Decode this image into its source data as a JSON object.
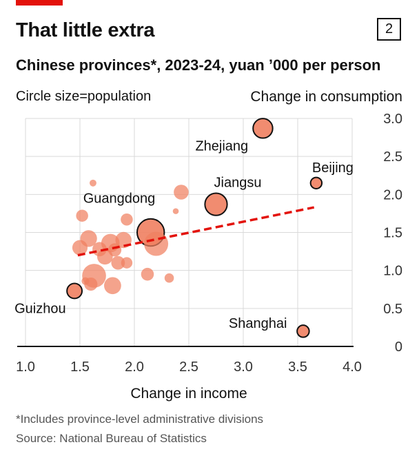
{
  "header": {
    "title": "That little extra",
    "chart_number": "2",
    "subtitle": "Chinese provinces*, 2023-24, yuan ’000 per person",
    "size_note": "Circle size=population",
    "footnote": "*Includes province-level administrative divisions",
    "source": "Source: National Bureau of Statistics"
  },
  "colors": {
    "brand_red": "#e3120b",
    "bubble_fill": "#f08060",
    "trend_line": "#e3120b",
    "grid": "#d9d9d9"
  },
  "chart_data": {
    "type": "scatter",
    "title": "That little extra",
    "xlabel": "Change in income",
    "ylabel": "Change in consumption",
    "xlim": [
      1.0,
      4.0
    ],
    "ylim": [
      0,
      3.0
    ],
    "x_ticks": [
      "1.0",
      "1.5",
      "2.0",
      "2.5",
      "3.0",
      "3.5",
      "4.0"
    ],
    "x_tick_values": [
      1.0,
      1.5,
      2.0,
      2.5,
      3.0,
      3.5,
      4.0
    ],
    "y_ticks": [
      "0",
      "0.5",
      "1.0",
      "1.5",
      "2.0",
      "2.5",
      "3.0"
    ],
    "y_tick_values": [
      0,
      0.5,
      1.0,
      1.5,
      2.0,
      2.5,
      3.0
    ],
    "grid": true,
    "trend_line": {
      "x": [
        1.48,
        3.65
      ],
      "y": [
        1.2,
        1.83
      ]
    },
    "points": [
      {
        "name": "Zhejiang",
        "x": 3.18,
        "y": 2.87,
        "pop": 66,
        "labeled": true,
        "outlined": true
      },
      {
        "name": "Beijing",
        "x": 3.67,
        "y": 2.15,
        "pop": 22,
        "labeled": true,
        "outlined": true
      },
      {
        "name": "Jiangsu",
        "x": 2.75,
        "y": 1.87,
        "pop": 85,
        "labeled": true,
        "outlined": true
      },
      {
        "name": "Guangdong",
        "x": 2.15,
        "y": 1.5,
        "pop": 127,
        "labeled": true,
        "outlined": true
      },
      {
        "name": "Guizhou",
        "x": 1.45,
        "y": 0.73,
        "pop": 39,
        "labeled": true,
        "outlined": true
      },
      {
        "name": "Shanghai",
        "x": 3.55,
        "y": 0.2,
        "pop": 25,
        "labeled": true,
        "outlined": true
      },
      {
        "name": "",
        "x": 1.62,
        "y": 2.15,
        "pop": 8
      },
      {
        "name": "",
        "x": 2.43,
        "y": 2.03,
        "pop": 38
      },
      {
        "name": "",
        "x": 1.52,
        "y": 1.72,
        "pop": 25
      },
      {
        "name": "",
        "x": 1.93,
        "y": 1.67,
        "pop": 25
      },
      {
        "name": "",
        "x": 2.38,
        "y": 1.78,
        "pop": 6
      },
      {
        "name": "",
        "x": 1.58,
        "y": 1.42,
        "pop": 48
      },
      {
        "name": "",
        "x": 1.5,
        "y": 1.3,
        "pop": 40
      },
      {
        "name": "",
        "x": 1.68,
        "y": 1.28,
        "pop": 35
      },
      {
        "name": "",
        "x": 1.78,
        "y": 1.36,
        "pop": 58
      },
      {
        "name": "",
        "x": 1.9,
        "y": 1.4,
        "pop": 45
      },
      {
        "name": "",
        "x": 1.82,
        "y": 1.27,
        "pop": 30
      },
      {
        "name": "",
        "x": 2.2,
        "y": 1.35,
        "pop": 100
      },
      {
        "name": "",
        "x": 1.73,
        "y": 1.18,
        "pop": 42
      },
      {
        "name": "",
        "x": 1.85,
        "y": 1.1,
        "pop": 32
      },
      {
        "name": "",
        "x": 1.93,
        "y": 1.1,
        "pop": 22
      },
      {
        "name": "",
        "x": 1.63,
        "y": 0.93,
        "pop": 98
      },
      {
        "name": "",
        "x": 1.55,
        "y": 0.86,
        "pop": 10
      },
      {
        "name": "",
        "x": 1.6,
        "y": 0.82,
        "pop": 30
      },
      {
        "name": "",
        "x": 1.8,
        "y": 0.8,
        "pop": 50
      },
      {
        "name": "",
        "x": 2.12,
        "y": 0.95,
        "pop": 28
      },
      {
        "name": "",
        "x": 2.32,
        "y": 0.9,
        "pop": 15
      }
    ]
  }
}
